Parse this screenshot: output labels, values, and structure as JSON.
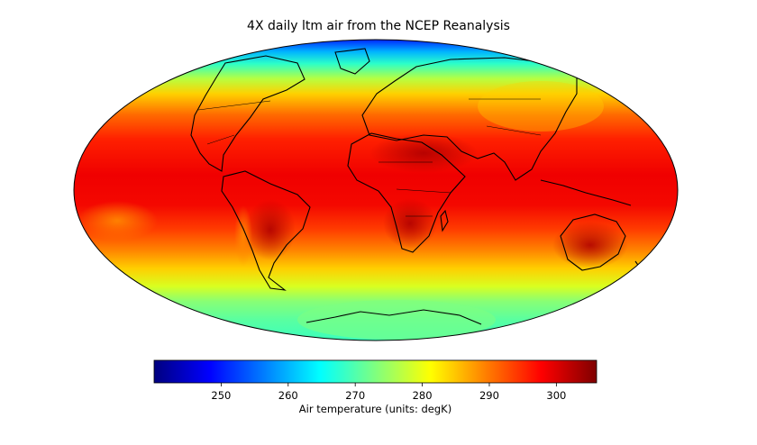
{
  "map": {
    "title": "4X daily ltm air from the NCEP Reanalysis",
    "projection": "mollweide",
    "variable": "air temperature",
    "colormap": "jet",
    "outline_color": "#000000",
    "coastline_color": "#000000"
  },
  "colorbar": {
    "label": "Air temperature (units: degK)",
    "orientation": "horizontal",
    "vmin": 240,
    "vmax": 306,
    "ticks": [
      {
        "value": 250,
        "label": "250"
      },
      {
        "value": 260,
        "label": "260"
      },
      {
        "value": 270,
        "label": "270"
      },
      {
        "value": 280,
        "label": "280"
      },
      {
        "value": 290,
        "label": "290"
      },
      {
        "value": 300,
        "label": "300"
      }
    ],
    "colors": [
      "#00007f",
      "#0000ff",
      "#007fff",
      "#00ffff",
      "#7fff7f",
      "#ffff00",
      "#ff7f00",
      "#ff0000",
      "#7f0000"
    ]
  }
}
